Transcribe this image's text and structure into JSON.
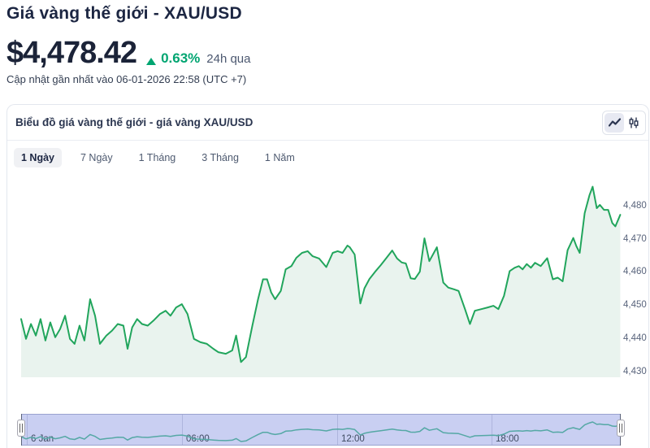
{
  "page": {
    "title": "Giá vàng thế giới - XAU/USD",
    "price": "$4,478.42",
    "change_pct": "0.63%",
    "change_period": "24h qua",
    "change_direction": "up",
    "updated": "Cập nhật gần nhất vào 06-01-2026 22:58 (UTC +7)"
  },
  "card": {
    "title": "Biểu đồ giá vàng thế giới - giá vàng XAU/USD",
    "chart_type_toggle": {
      "options": [
        "line-chart",
        "candlestick-chart"
      ],
      "active": "line-chart"
    },
    "tabs": [
      {
        "id": "1-day",
        "label": "1 Ngày",
        "active": true
      },
      {
        "id": "7-day",
        "label": "7 Ngày",
        "active": false
      },
      {
        "id": "1-month",
        "label": "1 Tháng",
        "active": false
      },
      {
        "id": "3-month",
        "label": "3 Tháng",
        "active": false
      },
      {
        "id": "1-year",
        "label": "1 Năm",
        "active": false
      }
    ]
  },
  "colors": {
    "navy_text": "#1c2642",
    "slate_text": "#4e5a70",
    "accent_green": "#00a571",
    "line_green": "#21a55c",
    "fill_green": "#e9f3ee",
    "navigator_bg": "#c9cff2",
    "navigator_line": "#55a8a5"
  },
  "chart_data": {
    "type": "area",
    "title": "Biểu đồ giá vàng thế giới - giá vàng XAU/USD",
    "symbol": "XAU/USD",
    "last_price": 4478.42,
    "change_pct_24h": 0.63,
    "x_unit": "hours of 06-01-2026 (UTC+7)",
    "xticks": [
      {
        "hour": 0,
        "label": "6 Jan"
      },
      {
        "hour": 6,
        "label": "06:00"
      },
      {
        "hour": 12,
        "label": "12:00"
      },
      {
        "hour": 18,
        "label": "18:00"
      }
    ],
    "yticks": [
      {
        "value": 4480,
        "label": "4,480"
      },
      {
        "value": 4470,
        "label": "4,470"
      },
      {
        "value": 4460,
        "label": "4,460"
      },
      {
        "value": 4450,
        "label": "4,450"
      },
      {
        "value": 4440,
        "label": "4,440"
      },
      {
        "value": 4430,
        "label": "4,430"
      }
    ],
    "ylim": [
      4428,
      4492
    ],
    "grid": "off",
    "legend": "off",
    "navigator": {
      "visible": true,
      "selected_range": "full"
    },
    "series": [
      {
        "name": "XAU/USD",
        "points": [
          [
            -0.22,
            4446
          ],
          [
            -0.03,
            4440
          ],
          [
            0.16,
            4444.5
          ],
          [
            0.35,
            4441
          ],
          [
            0.53,
            4446
          ],
          [
            0.72,
            4439.5
          ],
          [
            0.91,
            4445
          ],
          [
            1.1,
            4440.5
          ],
          [
            1.29,
            4443
          ],
          [
            1.48,
            4447
          ],
          [
            1.67,
            4440
          ],
          [
            1.85,
            4438.5
          ],
          [
            2.04,
            4444
          ],
          [
            2.23,
            4439.5
          ],
          [
            2.45,
            4452
          ],
          [
            2.64,
            4447
          ],
          [
            2.83,
            4438.5
          ],
          [
            3.08,
            4441
          ],
          [
            3.3,
            4442.5
          ],
          [
            3.52,
            4444.5
          ],
          [
            3.74,
            4444
          ],
          [
            3.9,
            4437
          ],
          [
            4.08,
            4443.5
          ],
          [
            4.27,
            4446
          ],
          [
            4.46,
            4444.5
          ],
          [
            4.68,
            4444
          ],
          [
            4.9,
            4445.5
          ],
          [
            5.15,
            4447.5
          ],
          [
            5.37,
            4448.5
          ],
          [
            5.56,
            4447
          ],
          [
            5.78,
            4449.5
          ],
          [
            6.0,
            4450.5
          ],
          [
            6.22,
            4447.5
          ],
          [
            6.47,
            4440
          ],
          [
            6.72,
            4439
          ],
          [
            6.97,
            4438.5
          ],
          [
            7.22,
            4437
          ],
          [
            7.41,
            4436
          ],
          [
            7.7,
            4435.5
          ],
          [
            7.95,
            4436.5
          ],
          [
            8.1,
            4441
          ],
          [
            8.29,
            4433
          ],
          [
            8.48,
            4434.5
          ],
          [
            8.73,
            4444
          ],
          [
            8.95,
            4452
          ],
          [
            9.14,
            4458
          ],
          [
            9.3,
            4458
          ],
          [
            9.46,
            4454
          ],
          [
            9.61,
            4452
          ],
          [
            9.83,
            4454.5
          ],
          [
            10.02,
            4461
          ],
          [
            10.24,
            4462
          ],
          [
            10.43,
            4464.5
          ],
          [
            10.65,
            4466
          ],
          [
            10.87,
            4466.5
          ],
          [
            11.06,
            4465
          ],
          [
            11.31,
            4464.3
          ],
          [
            11.59,
            4461.7
          ],
          [
            11.84,
            4466
          ],
          [
            12.03,
            4466.5
          ],
          [
            12.22,
            4466
          ],
          [
            12.41,
            4468.2
          ],
          [
            12.5,
            4467.7
          ],
          [
            12.69,
            4465.5
          ],
          [
            12.91,
            4450.7
          ],
          [
            13.07,
            4455.3
          ],
          [
            13.26,
            4458.1
          ],
          [
            13.48,
            4460.3
          ],
          [
            13.7,
            4462.3
          ],
          [
            13.92,
            4464.5
          ],
          [
            14.14,
            4466.7
          ],
          [
            14.33,
            4464.3
          ],
          [
            14.51,
            4463.1
          ],
          [
            14.67,
            4462.8
          ],
          [
            14.86,
            4458.3
          ],
          [
            15.02,
            4458.1
          ],
          [
            15.21,
            4460.3
          ],
          [
            15.39,
            4470.4
          ],
          [
            15.58,
            4463.5
          ],
          [
            15.87,
            4467.7
          ],
          [
            16.12,
            4457
          ],
          [
            16.31,
            4455.5
          ],
          [
            16.53,
            4455
          ],
          [
            16.71,
            4454.5
          ],
          [
            16.96,
            4449
          ],
          [
            17.15,
            4444.5
          ],
          [
            17.34,
            4448.5
          ],
          [
            17.59,
            4449
          ],
          [
            17.84,
            4449.5
          ],
          [
            18.06,
            4450
          ],
          [
            18.25,
            4449
          ],
          [
            18.47,
            4453
          ],
          [
            18.69,
            4460.5
          ],
          [
            18.88,
            4461.5
          ],
          [
            19.04,
            4462
          ],
          [
            19.19,
            4461
          ],
          [
            19.35,
            4462.6
          ],
          [
            19.51,
            4461.5
          ],
          [
            19.67,
            4463
          ],
          [
            19.89,
            4462
          ],
          [
            20.14,
            4464.4
          ],
          [
            20.36,
            4458
          ],
          [
            20.55,
            4458.5
          ],
          [
            20.74,
            4457.4
          ],
          [
            20.93,
            4466.8
          ],
          [
            21.15,
            4470.5
          ],
          [
            21.27,
            4468
          ],
          [
            21.4,
            4466
          ],
          [
            21.59,
            4478
          ],
          [
            21.78,
            4483.5
          ],
          [
            21.9,
            4486
          ],
          [
            22.06,
            4479.5
          ],
          [
            22.18,
            4480.5
          ],
          [
            22.34,
            4479
          ],
          [
            22.5,
            4479
          ],
          [
            22.66,
            4475
          ],
          [
            22.78,
            4474
          ],
          [
            22.97,
            4477.5
          ]
        ]
      }
    ]
  }
}
